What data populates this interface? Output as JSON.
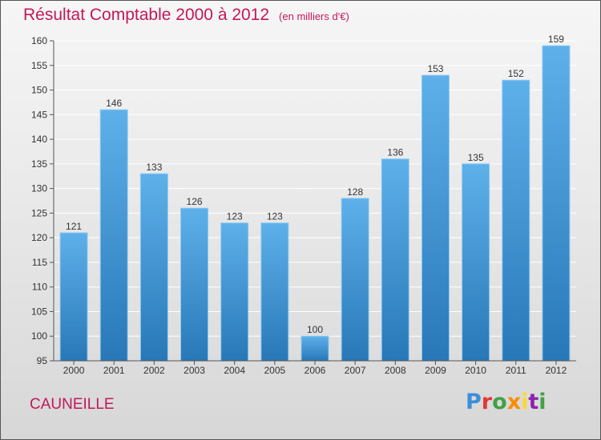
{
  "header": {
    "title": "Résultat Comptable 2000 à 2012",
    "subtitle": "(en milliers d'€)"
  },
  "footer": {
    "commune": "CAUNEILLE",
    "logo": [
      "P",
      "r",
      "o",
      "x",
      "i",
      "t",
      "i"
    ],
    "logo_colors": [
      "#3b8fd8",
      "#e53935",
      "#43a047",
      "#fb8c00",
      "#fdd835",
      "#8e24aa",
      "#43a047"
    ]
  },
  "colors": {
    "accent": "#c2185b",
    "bar_top": "#5eb0ea",
    "bar_bottom": "#2878b8",
    "grid": "#ffffff",
    "axis": "#555555",
    "label": "#333333"
  },
  "chart_data": {
    "type": "bar",
    "categories": [
      "2000",
      "2001",
      "2002",
      "2003",
      "2004",
      "2005",
      "2006",
      "2007",
      "2008",
      "2009",
      "2010",
      "2011",
      "2012"
    ],
    "values": [
      121,
      146,
      133,
      126,
      123,
      123,
      100,
      128,
      136,
      153,
      135,
      152,
      159
    ],
    "title": "Résultat Comptable 2000 à 2012",
    "xlabel": "",
    "ylabel": "",
    "ylim": [
      95,
      160
    ],
    "yticks": [
      95,
      100,
      105,
      110,
      115,
      120,
      125,
      130,
      135,
      140,
      145,
      150,
      155,
      160
    ],
    "grid": true,
    "legend": "none"
  }
}
